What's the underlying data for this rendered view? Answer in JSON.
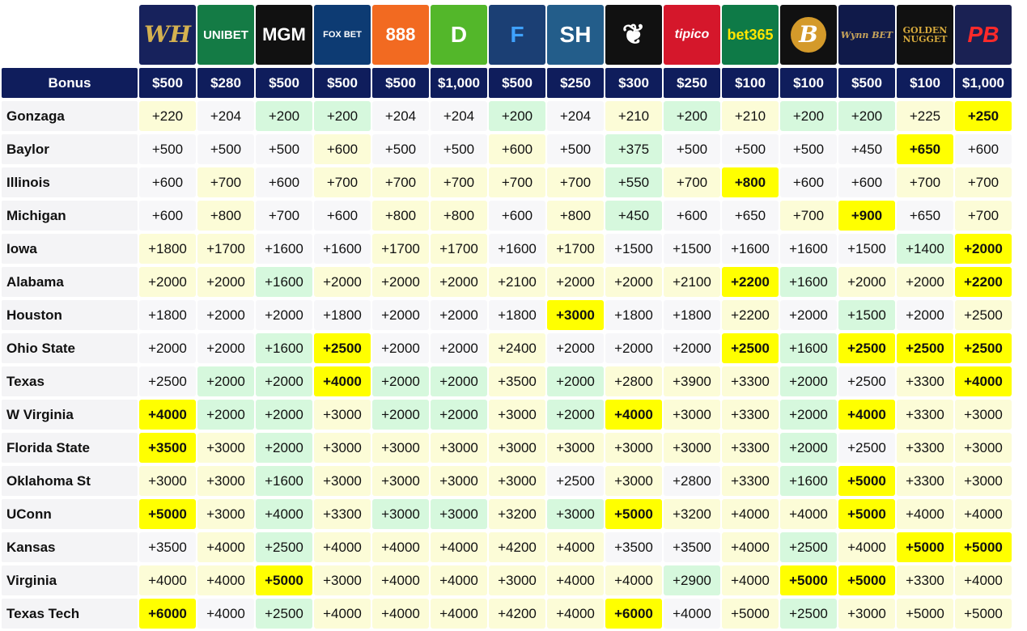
{
  "sportsbooks": [
    {
      "id": "wh",
      "text": "WH",
      "bg": "#17225c",
      "fg": "#d4b150",
      "icon": "wh-logo"
    },
    {
      "id": "unibet",
      "text": "UNIBET",
      "bg": "#147b45",
      "fg": "#ffffff",
      "icon": "unibet-logo"
    },
    {
      "id": "mgm",
      "text": "MGM",
      "bg": "#111111",
      "fg": "#ffffff",
      "icon": "mgm-lion-logo"
    },
    {
      "id": "foxbet",
      "text": "FOX BET",
      "bg": "#0d3b73",
      "fg": "#ffffff",
      "icon": "foxbet-logo"
    },
    {
      "id": "888",
      "text": "888",
      "bg": "#f26a21",
      "fg": "#ffffff",
      "icon": "888sport-logo"
    },
    {
      "id": "draftkings",
      "text": "D",
      "bg": "#53b72a",
      "fg": "#ffffff",
      "icon": "draftkings-logo"
    },
    {
      "id": "fanduel",
      "text": "F",
      "bg": "#1b3f74",
      "fg": "#3fa2ff",
      "icon": "fanduel-shield-logo"
    },
    {
      "id": "sh",
      "text": "SH",
      "bg": "#235d8a",
      "fg": "#ffffff",
      "icon": "sh-logo"
    },
    {
      "id": "laurel",
      "text": "❦",
      "bg": "#111111",
      "fg": "#ffffff",
      "icon": "laurel-wreath-logo"
    },
    {
      "id": "tipico",
      "text": "tipico",
      "bg": "#d5172b",
      "fg": "#ffffff",
      "icon": "tipico-logo"
    },
    {
      "id": "bet365",
      "text": "bet365",
      "bg": "#0e7a47",
      "fg": "#ffe600",
      "icon": "bet365-logo"
    },
    {
      "id": "b",
      "text": "B",
      "bg": "#111111",
      "fg": "#e3a72a",
      "icon": "b-circle-logo"
    },
    {
      "id": "wynn",
      "text": "Wynn BET",
      "bg": "#101a4a",
      "fg": "#c9a55a",
      "icon": "wynnbet-logo"
    },
    {
      "id": "goldennugget",
      "text": "GOLDEN NUGGET",
      "bg": "#111111",
      "fg": "#d4a83c",
      "icon": "golden-nugget-logo"
    },
    {
      "id": "pb",
      "text": "PB",
      "bg": "#1a2153",
      "fg": "#ff2a2a",
      "icon": "pointsbet-logo"
    }
  ],
  "bonus_label": "Bonus",
  "bonuses": [
    "$500",
    "$280",
    "$500",
    "$500",
    "$500",
    "$1,000",
    "$500",
    "$250",
    "$300",
    "$250",
    "$100",
    "$100",
    "$500",
    "$100",
    "$1,000"
  ],
  "colors": {
    "header_navy": "#0f1d5c",
    "highlight": "#ffff00",
    "green": "#d6f8dd",
    "yellow": "#fcfcd7",
    "white": "#f7f7f9"
  },
  "teams": [
    {
      "name": "Gonzaga",
      "odds": [
        "+220",
        "+204",
        "+200",
        "+200",
        "+204",
        "+204",
        "+200",
        "+204",
        "+210",
        "+200",
        "+210",
        "+200",
        "+200",
        "+225",
        "+250"
      ],
      "tints": "ywgg wwgw yg ygg ? h"
    },
    {
      "name": "Baylor",
      "odds": [
        "+500",
        "+500",
        "+500",
        "+600",
        "+500",
        "+500",
        "+600",
        "+500",
        "+375",
        "+500",
        "+500",
        "+500",
        "+450",
        "+650",
        "+600"
      ]
    },
    {
      "name": "Illinois",
      "odds": [
        "+600",
        "+700",
        "+600",
        "+700",
        "+700",
        "+700",
        "+700",
        "+700",
        "+550",
        "+700",
        "+800",
        "+600",
        "+600",
        "+700",
        "+700"
      ]
    },
    {
      "name": "Michigan",
      "odds": [
        "+600",
        "+800",
        "+700",
        "+600",
        "+800",
        "+800",
        "+600",
        "+800",
        "+450",
        "+600",
        "+650",
        "+700",
        "+900",
        "+650",
        "+700"
      ]
    },
    {
      "name": "Iowa",
      "odds": [
        "+1800",
        "+1700",
        "+1600",
        "+1600",
        "+1700",
        "+1700",
        "+1600",
        "+1700",
        "+1500",
        "+1500",
        "+1600",
        "+1600",
        "+1500",
        "+1400",
        "+2000"
      ]
    },
    {
      "name": "Alabama",
      "odds": [
        "+2000",
        "+2000",
        "+1600",
        "+2000",
        "+2000",
        "+2000",
        "+2100",
        "+2000",
        "+2000",
        "+2100",
        "+2200",
        "+1600",
        "+2000",
        "+2000",
        "+2200"
      ]
    },
    {
      "name": "Houston",
      "odds": [
        "+1800",
        "+2000",
        "+2000",
        "+1800",
        "+2000",
        "+2000",
        "+1800",
        "+3000",
        "+1800",
        "+1800",
        "+2200",
        "+2000",
        "+1500",
        "+2000",
        "+2500"
      ]
    },
    {
      "name": "Ohio State",
      "odds": [
        "+2000",
        "+2000",
        "+1600",
        "+2500",
        "+2000",
        "+2000",
        "+2400",
        "+2000",
        "+2000",
        "+2000",
        "+2500",
        "+1600",
        "+2500",
        "+2500",
        "+2500"
      ]
    },
    {
      "name": "Texas",
      "odds": [
        "+2500",
        "+2000",
        "+2000",
        "+4000",
        "+2000",
        "+2000",
        "+3500",
        "+2000",
        "+2800",
        "+3900",
        "+3300",
        "+2000",
        "+2500",
        "+3300",
        "+4000"
      ]
    },
    {
      "name": "W Virginia",
      "odds": [
        "+4000",
        "+2000",
        "+2000",
        "+3000",
        "+2000",
        "+2000",
        "+3000",
        "+2000",
        "+4000",
        "+3000",
        "+3300",
        "+2000",
        "+4000",
        "+3300",
        "+3000"
      ]
    },
    {
      "name": "Florida State",
      "odds": [
        "+3500",
        "+3000",
        "+2000",
        "+3000",
        "+3000",
        "+3000",
        "+3000",
        "+3000",
        "+3000",
        "+3000",
        "+3300",
        "+2000",
        "+2500",
        "+3300",
        "+3000"
      ]
    },
    {
      "name": "Oklahoma St",
      "odds": [
        "+3000",
        "+3000",
        "+1600",
        "+3000",
        "+3000",
        "+3000",
        "+3000",
        "+2500",
        "+3000",
        "+2800",
        "+3300",
        "+1600",
        "+5000",
        "+3300",
        "+3000"
      ]
    },
    {
      "name": "UConn",
      "odds": [
        "+5000",
        "+3000",
        "+4000",
        "+3300",
        "+3000",
        "+3000",
        "+3200",
        "+3000",
        "+5000",
        "+3200",
        "+4000",
        "+4000",
        "+5000",
        "+4000",
        "+4000"
      ]
    },
    {
      "name": "Kansas",
      "odds": [
        "+3500",
        "+4000",
        "+2500",
        "+4000",
        "+4000",
        "+4000",
        "+4200",
        "+4000",
        "+3500",
        "+3500",
        "+4000",
        "+2500",
        "+4000",
        "+5000",
        "+5000"
      ]
    },
    {
      "name": "Virginia",
      "odds": [
        "+4000",
        "+4000",
        "+5000",
        "+3000",
        "+4000",
        "+4000",
        "+3000",
        "+4000",
        "+4000",
        "+2900",
        "+4000",
        "+5000",
        "+5000",
        "+3300",
        "+4000"
      ]
    },
    {
      "name": "Texas Tech",
      "odds": [
        "+6000",
        "+4000",
        "+2500",
        "+4000",
        "+4000",
        "+4000",
        "+4200",
        "+4000",
        "+6000",
        "+4000",
        "+5000",
        "+2500",
        "+3000",
        "+5000",
        "+5000"
      ]
    }
  ],
  "tints": [
    "ywgggwgwygygggyh",
    "wwwywwywgwwwwhw",
    "wywyyyyygyhwwyy",
    "wywwyywygwwyhwy",
    "yywwyywygwwwwgh",
    "yygyyygyygh gyyh",
    "wwwwwwwhwwwwgwy",
    "wwghwwywwwhghhh",
    "wggh ggygyyygwyh",
    "hggyggygyhyygh yw",
    "hyygyyyyyyygwyy",
    "yygyyyygyyygh yy",
    "hygyggygh ygyh yy",
    "wyyyyygyyyygyhh",
    "yyh yyyyyyygyhh wy",
    "hwgyyyygh wwyggyw"
  ]
}
